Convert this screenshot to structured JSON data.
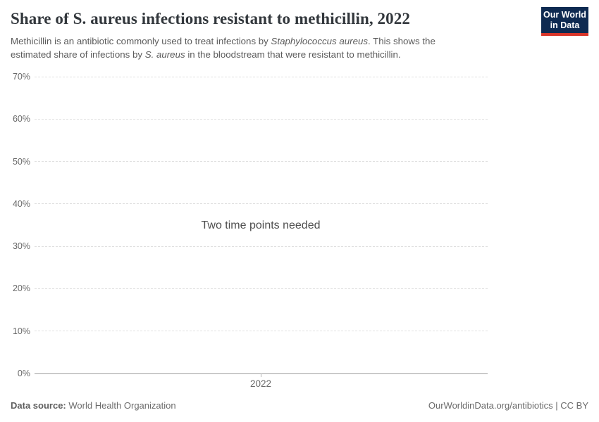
{
  "header": {
    "title": "Share of S. aureus infections resistant to methicillin, 2022",
    "subtitle_segments": [
      {
        "text": "Methicillin is an antibiotic commonly used to treat infections by ",
        "italic": false
      },
      {
        "text": "Staphylococcus aureus",
        "italic": true
      },
      {
        "text": ". This shows the",
        "italic": false
      },
      {
        "break": true
      },
      {
        "text": "estimated share of infections by ",
        "italic": false
      },
      {
        "text": "S. aureus",
        "italic": true
      },
      {
        "text": " in the bloodstream that were resistant to methicillin.",
        "italic": false
      }
    ]
  },
  "logo": {
    "line1": "Our World",
    "line2": "in Data"
  },
  "chart_data": {
    "type": "line",
    "title": "Share of S. aureus infections resistant to methicillin, 2022",
    "empty_message": "Two time points needed",
    "series": [],
    "x_axis": {
      "ticks": [
        "2022"
      ]
    },
    "y_axis": {
      "ticks": [
        "70%",
        "60%",
        "50%",
        "40%",
        "30%",
        "20%",
        "10%",
        "0%"
      ],
      "min": 0,
      "max": 70,
      "unit": "%"
    },
    "grid": true,
    "legend_position": "none"
  },
  "footer": {
    "source_label": "Data source:",
    "source_value": "World Health Organization",
    "attribution": "OurWorldinData.org/antibiotics | CC BY"
  },
  "colors": {
    "logo_background": "#0e2a51",
    "logo_stripe": "#d8352a",
    "title_text": "#32373c",
    "subtitle_text": "#5a5a5a",
    "tick_text": "#696969",
    "message_text": "#4e4e4e",
    "gridline": "#e0e0e0",
    "axis_line": "#9e9e9e",
    "footer_text": "#6b6b6b"
  }
}
